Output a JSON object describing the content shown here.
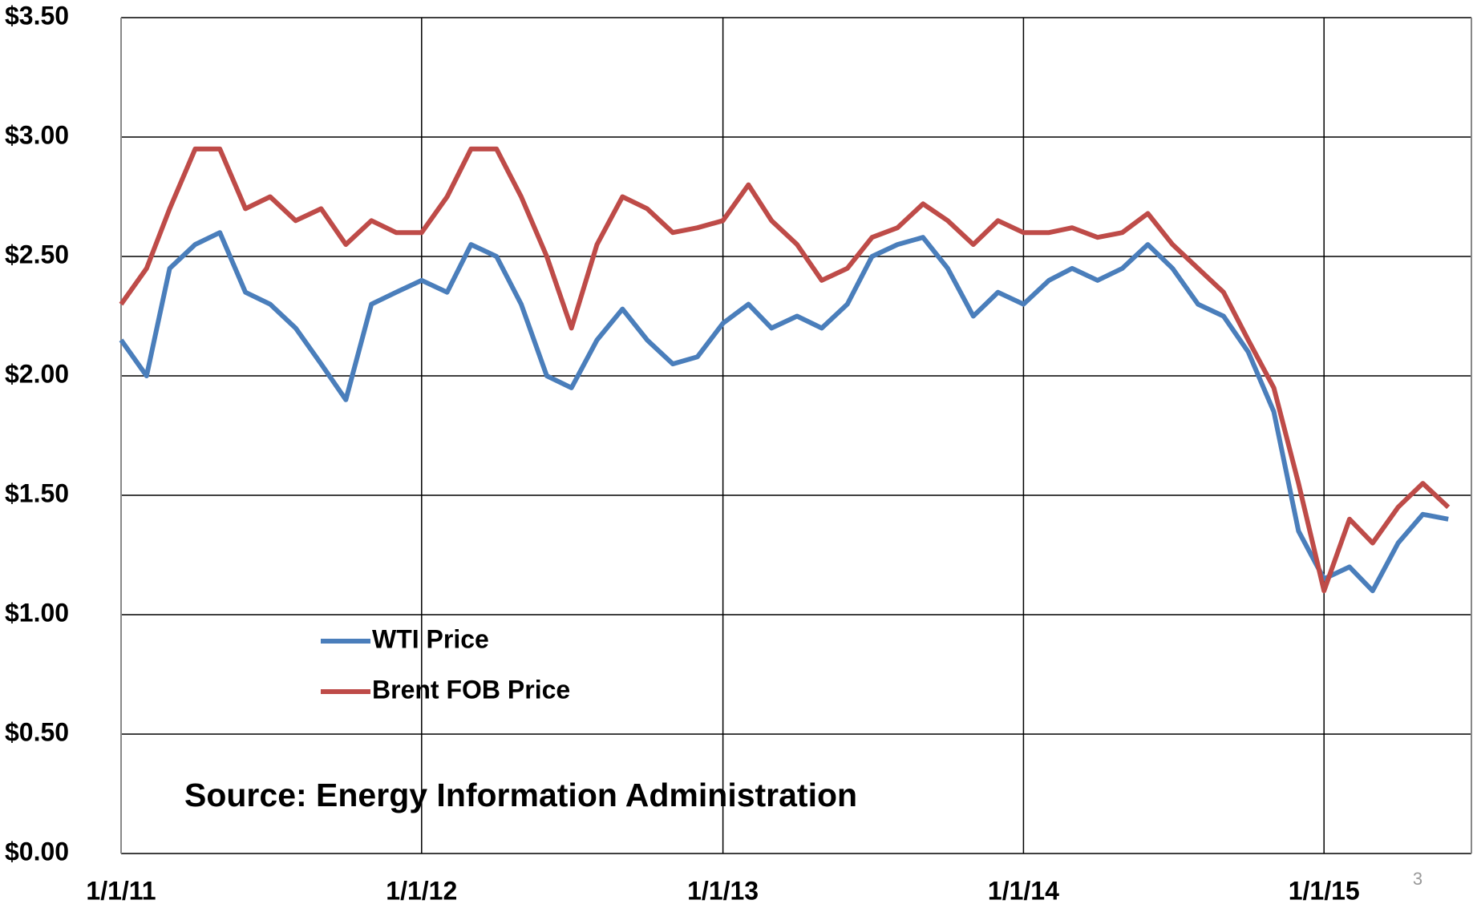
{
  "chart_data": {
    "type": "line",
    "annotation": "Source:  Energy Information Administration",
    "page_number": "3",
    "x": [
      "2011-01-01",
      "2011-02-01",
      "2011-03-01",
      "2011-04-01",
      "2011-05-01",
      "2011-06-01",
      "2011-07-01",
      "2011-08-01",
      "2011-09-01",
      "2011-10-01",
      "2011-11-01",
      "2011-12-01",
      "2012-01-01",
      "2012-02-01",
      "2012-03-01",
      "2012-04-01",
      "2012-05-01",
      "2012-06-01",
      "2012-07-01",
      "2012-08-01",
      "2012-09-01",
      "2012-10-01",
      "2012-11-01",
      "2012-12-01",
      "2013-01-01",
      "2013-02-01",
      "2013-03-01",
      "2013-04-01",
      "2013-05-01",
      "2013-06-01",
      "2013-07-01",
      "2013-08-01",
      "2013-09-01",
      "2013-10-01",
      "2013-11-01",
      "2013-12-01",
      "2014-01-01",
      "2014-02-01",
      "2014-03-01",
      "2014-04-01",
      "2014-05-01",
      "2014-06-01",
      "2014-07-01",
      "2014-08-01",
      "2014-09-01",
      "2014-10-01",
      "2014-11-01",
      "2014-12-01",
      "2015-01-01",
      "2015-02-01",
      "2015-03-01",
      "2015-04-01",
      "2015-05-01",
      "2015-06-01"
    ],
    "series": [
      {
        "name": "WTI Price",
        "color": "#4a7ebb",
        "values": [
          2.15,
          2.0,
          2.45,
          2.55,
          2.6,
          2.35,
          2.3,
          2.2,
          2.05,
          1.9,
          2.3,
          2.35,
          2.4,
          2.35,
          2.55,
          2.5,
          2.3,
          2.0,
          1.95,
          2.15,
          2.28,
          2.15,
          2.05,
          2.08,
          2.22,
          2.3,
          2.2,
          2.25,
          2.2,
          2.3,
          2.5,
          2.55,
          2.58,
          2.45,
          2.25,
          2.35,
          2.3,
          2.4,
          2.45,
          2.4,
          2.45,
          2.55,
          2.45,
          2.3,
          2.25,
          2.1,
          1.85,
          1.35,
          1.15,
          1.2,
          1.1,
          1.3,
          1.42,
          1.4
        ]
      },
      {
        "name": "Brent FOB Price",
        "color": "#be4b48",
        "values": [
          2.3,
          2.45,
          2.7,
          2.95,
          2.95,
          2.7,
          2.75,
          2.65,
          2.7,
          2.55,
          2.65,
          2.6,
          2.6,
          2.75,
          2.95,
          2.95,
          2.75,
          2.5,
          2.2,
          2.55,
          2.75,
          2.7,
          2.6,
          2.62,
          2.65,
          2.8,
          2.65,
          2.55,
          2.4,
          2.45,
          2.58,
          2.62,
          2.72,
          2.65,
          2.55,
          2.65,
          2.6,
          2.6,
          2.62,
          2.58,
          2.6,
          2.68,
          2.55,
          2.45,
          2.35,
          2.15,
          1.95,
          1.55,
          1.1,
          1.4,
          1.3,
          1.45,
          1.55,
          1.45
        ]
      }
    ],
    "xlim": [
      "2011-01-01",
      "2015-06-29"
    ],
    "xticks": [
      {
        "value": "2011-01-01",
        "label": "1/1/11"
      },
      {
        "value": "2012-01-01",
        "label": "1/1/12"
      },
      {
        "value": "2013-01-01",
        "label": "1/1/13"
      },
      {
        "value": "2014-01-01",
        "label": "1/1/14"
      },
      {
        "value": "2015-01-01",
        "label": "1/1/15"
      }
    ],
    "ylim": [
      0,
      3.5
    ],
    "yticks": [
      {
        "value": 0,
        "label": "$0.00"
      },
      {
        "value": 0.5,
        "label": "$0.50"
      },
      {
        "value": 1,
        "label": "$1.00"
      },
      {
        "value": 1.5,
        "label": "$1.50"
      },
      {
        "value": 2,
        "label": "$2.00"
      },
      {
        "value": 2.5,
        "label": "$2.50"
      },
      {
        "value": 3,
        "label": "$3.00"
      },
      {
        "value": 3.5,
        "label": "$3.50"
      }
    ],
    "grid": true
  }
}
